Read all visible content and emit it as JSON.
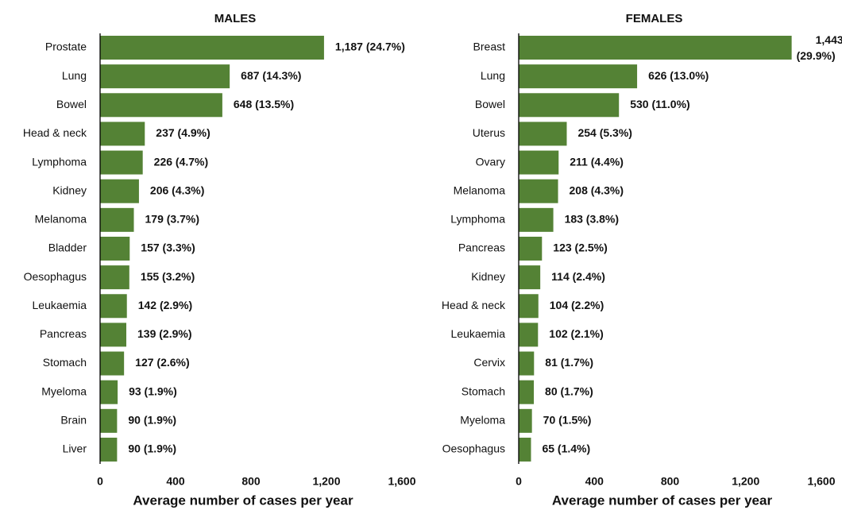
{
  "chart_data": [
    {
      "type": "bar",
      "orientation": "horizontal",
      "title": "MALES",
      "x_label": "Average number of cases per year",
      "color": "#548235",
      "categories": [
        "Prostate",
        "Lung",
        "Bowel",
        "Head & neck",
        "Lymphoma",
        "Kidney",
        "Melanoma",
        "Bladder",
        "Oesophagus",
        "Leukaemia",
        "Pancreas",
        "Stomach",
        "Myeloma",
        "Brain",
        "Liver"
      ],
      "values": [
        1187,
        687,
        648,
        237,
        226,
        206,
        179,
        157,
        155,
        142,
        139,
        127,
        93,
        90,
        90
      ],
      "value_labels": [
        "1,187 (24.7%)",
        "687 (14.3%)",
        "648 (13.5%)",
        "237 (4.9%)",
        "226 (4.7%)",
        "206 (4.3%)",
        "179 (3.7%)",
        "157 (3.3%)",
        "155 (3.2%)",
        "142 (2.9%)",
        "139 (2.9%)",
        "127 (2.6%)",
        "93 (1.9%)",
        "90 (1.9%)",
        "90 (1.9%)"
      ],
      "xlim": [
        0,
        1600
      ],
      "xticks": [
        0,
        400,
        800,
        {
          "value": 1200,
          "label": "1,200"
        },
        {
          "value": 1600,
          "label": "1,600"
        }
      ]
    },
    {
      "type": "bar",
      "orientation": "horizontal",
      "title": "FEMALES",
      "x_label": "Average number of cases per year",
      "color": "#548235",
      "categories": [
        "Breast",
        "Lung",
        "Bowel",
        "Uterus",
        "Ovary",
        "Melanoma",
        "Lymphoma",
        "Pancreas",
        "Kidney",
        "Head & neck",
        "Leukaemia",
        "Cervix",
        "Stomach",
        "Myeloma",
        "Oesophagus"
      ],
      "values": [
        1443,
        626,
        530,
        254,
        211,
        208,
        183,
        123,
        114,
        104,
        102,
        81,
        80,
        70,
        65
      ],
      "value_labels": [
        "1,443 (29.9%)",
        "626 (13.0%)",
        "530 (11.0%)",
        "254 (5.3%)",
        "211 (4.4%)",
        "208 (4.3%)",
        "183 (3.8%)",
        "123 (2.5%)",
        "114 (2.4%)",
        "104 (2.2%)",
        "102 (2.1%)",
        "81 (1.7%)",
        "80 (1.7%)",
        "70 (1.5%)",
        "65 (1.4%)"
      ],
      "xlim": [
        0,
        1600
      ],
      "xticks": [
        0,
        400,
        800,
        {
          "value": 1200,
          "label": "1,200"
        },
        {
          "value": 1600,
          "label": "1,600"
        }
      ]
    }
  ]
}
